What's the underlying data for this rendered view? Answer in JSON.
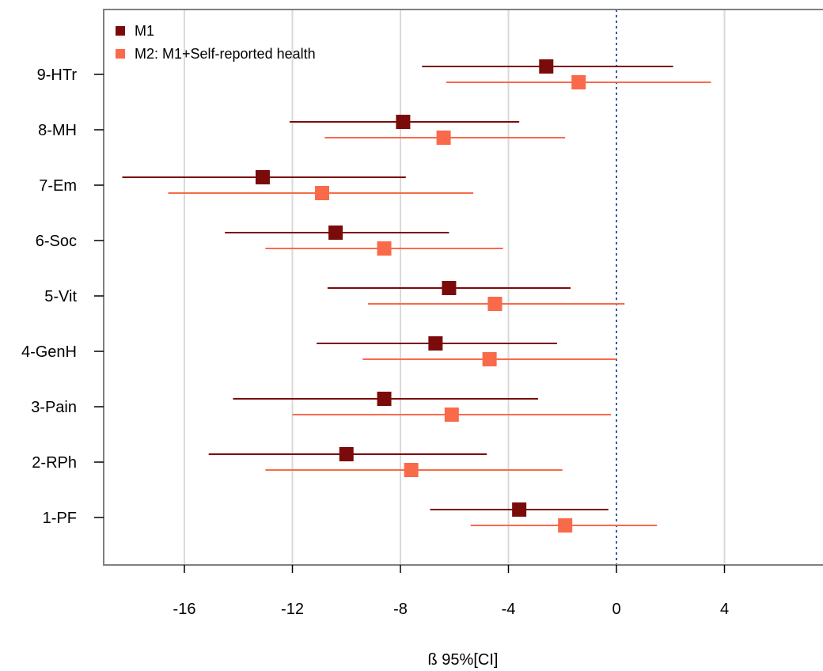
{
  "chart_data": {
    "type": "forest",
    "xlabel": "ß 95%[CI]",
    "xlim": [
      -19,
      7.5
    ],
    "xticks": [
      -16,
      -12,
      -8,
      -4,
      0,
      4
    ],
    "xtick_labels": [
      "-16",
      "-12",
      "-8",
      "-4",
      "0",
      "4"
    ],
    "reference_line": 0,
    "grid": "vertical",
    "legend_position": "top-left",
    "categories": [
      "9-HTr",
      "8-MH",
      "7-Em",
      "6-Soc",
      "5-Vit",
      "4-GenH",
      "3-Pain",
      "2-RPh",
      "1-PF"
    ],
    "series": [
      {
        "name": "M1",
        "color": "#7B0A0A",
        "estimates": [
          -2.6,
          -7.9,
          -13.1,
          -10.4,
          -6.2,
          -6.7,
          -8.6,
          -10.0,
          -3.6
        ],
        "ci_low": [
          -7.2,
          -12.1,
          -18.3,
          -14.5,
          -10.7,
          -11.1,
          -14.2,
          -15.1,
          -6.9
        ],
        "ci_high": [
          2.1,
          -3.6,
          -7.8,
          -6.2,
          -1.7,
          -2.2,
          -2.9,
          -4.8,
          -0.3
        ]
      },
      {
        "name": "M2: M1+Self-reported health",
        "color": "#F96A4A",
        "estimates": [
          -1.4,
          -6.4,
          -10.9,
          -8.6,
          -4.5,
          -4.7,
          -6.1,
          -7.6,
          -1.9
        ],
        "ci_low": [
          -6.3,
          -10.8,
          -16.6,
          -13.0,
          -9.2,
          -9.4,
          -12.0,
          -13.0,
          -5.4
        ],
        "ci_high": [
          3.5,
          -1.9,
          -5.3,
          -4.2,
          0.3,
          0.0,
          -0.2,
          -2.0,
          1.5
        ]
      }
    ]
  }
}
